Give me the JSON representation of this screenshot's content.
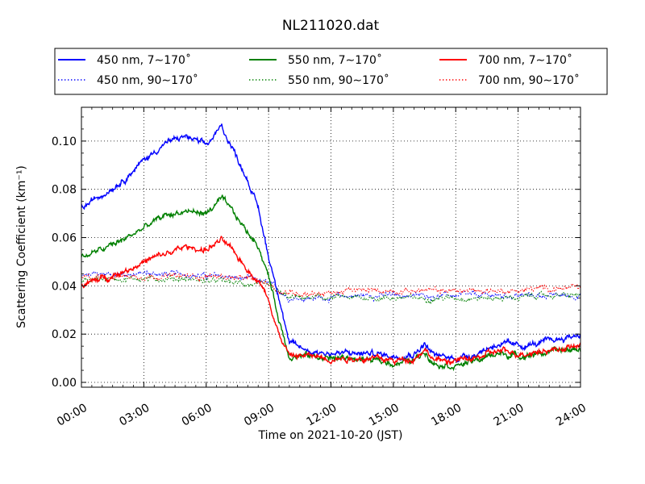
{
  "chart_data": {
    "type": "line",
    "title": "NL211020.dat",
    "xlabel": "Time on 2021-10-20 (JST)",
    "ylabel": "Scattering Coefficient (km⁻¹)",
    "xlim": [
      "00:00",
      "24:00"
    ],
    "ylim": [
      -0.002,
      0.114
    ],
    "x_ticks": [
      "00:00",
      "03:00",
      "06:00",
      "09:00",
      "12:00",
      "15:00",
      "18:00",
      "21:00",
      "24:00"
    ],
    "y_ticks": [
      "0.00",
      "0.02",
      "0.04",
      "0.06",
      "0.08",
      "0.10"
    ],
    "grid": true,
    "legend_position": "top",
    "x": [
      "00:00",
      "01:00",
      "02:00",
      "03:00",
      "04:00",
      "05:00",
      "06:00",
      "06:45",
      "07:30",
      "08:00",
      "08:30",
      "09:00",
      "09:30",
      "10:00",
      "11:00",
      "12:00",
      "13:00",
      "14:00",
      "15:00",
      "16:00",
      "16:30",
      "17:00",
      "18:00",
      "19:00",
      "20:00",
      "21:00",
      "22:00",
      "23:00",
      "24:00"
    ],
    "series": [
      {
        "name": "450 nm, 7∼170˚",
        "color": "#0000ff",
        "style": "solid",
        "values": [
          0.072,
          0.078,
          0.084,
          0.092,
          0.099,
          0.102,
          0.098,
          0.106,
          0.093,
          0.084,
          0.072,
          0.052,
          0.036,
          0.016,
          0.013,
          0.012,
          0.012,
          0.012,
          0.011,
          0.012,
          0.016,
          0.011,
          0.01,
          0.012,
          0.016,
          0.015,
          0.016,
          0.018,
          0.02
        ]
      },
      {
        "name": "450 nm, 90∼170˚",
        "color": "#0000ff",
        "style": "dotted",
        "values": [
          0.044,
          0.045,
          0.045,
          0.045,
          0.045,
          0.045,
          0.044,
          0.044,
          0.043,
          0.043,
          0.042,
          0.041,
          0.038,
          0.035,
          0.035,
          0.035,
          0.036,
          0.036,
          0.036,
          0.036,
          0.036,
          0.036,
          0.036,
          0.036,
          0.036,
          0.036,
          0.036,
          0.036,
          0.036
        ]
      },
      {
        "name": "550 nm, 7∼170˚",
        "color": "#008000",
        "style": "solid",
        "values": [
          0.052,
          0.055,
          0.059,
          0.064,
          0.069,
          0.071,
          0.07,
          0.076,
          0.068,
          0.062,
          0.057,
          0.044,
          0.026,
          0.011,
          0.011,
          0.01,
          0.01,
          0.009,
          0.008,
          0.009,
          0.013,
          0.008,
          0.007,
          0.009,
          0.012,
          0.011,
          0.012,
          0.013,
          0.014
        ]
      },
      {
        "name": "550 nm, 90∼170˚",
        "color": "#008000",
        "style": "dotted",
        "values": [
          0.042,
          0.043,
          0.043,
          0.043,
          0.043,
          0.043,
          0.042,
          0.042,
          0.041,
          0.041,
          0.04,
          0.04,
          0.037,
          0.035,
          0.035,
          0.035,
          0.035,
          0.035,
          0.035,
          0.035,
          0.035,
          0.035,
          0.035,
          0.035,
          0.035,
          0.035,
          0.036,
          0.036,
          0.036
        ]
      },
      {
        "name": "700 nm, 7∼170˚",
        "color": "#ff0000",
        "style": "solid",
        "values": [
          0.04,
          0.043,
          0.046,
          0.05,
          0.053,
          0.056,
          0.055,
          0.059,
          0.052,
          0.047,
          0.042,
          0.035,
          0.02,
          0.011,
          0.011,
          0.01,
          0.01,
          0.01,
          0.009,
          0.01,
          0.014,
          0.009,
          0.009,
          0.01,
          0.013,
          0.012,
          0.013,
          0.014,
          0.015
        ]
      },
      {
        "name": "700 nm, 90∼170˚",
        "color": "#ff0000",
        "style": "dotted",
        "values": [
          0.043,
          0.044,
          0.044,
          0.044,
          0.044,
          0.044,
          0.044,
          0.044,
          0.043,
          0.043,
          0.042,
          0.041,
          0.038,
          0.037,
          0.037,
          0.037,
          0.038,
          0.038,
          0.038,
          0.038,
          0.038,
          0.038,
          0.038,
          0.038,
          0.038,
          0.038,
          0.039,
          0.039,
          0.039
        ]
      }
    ]
  }
}
